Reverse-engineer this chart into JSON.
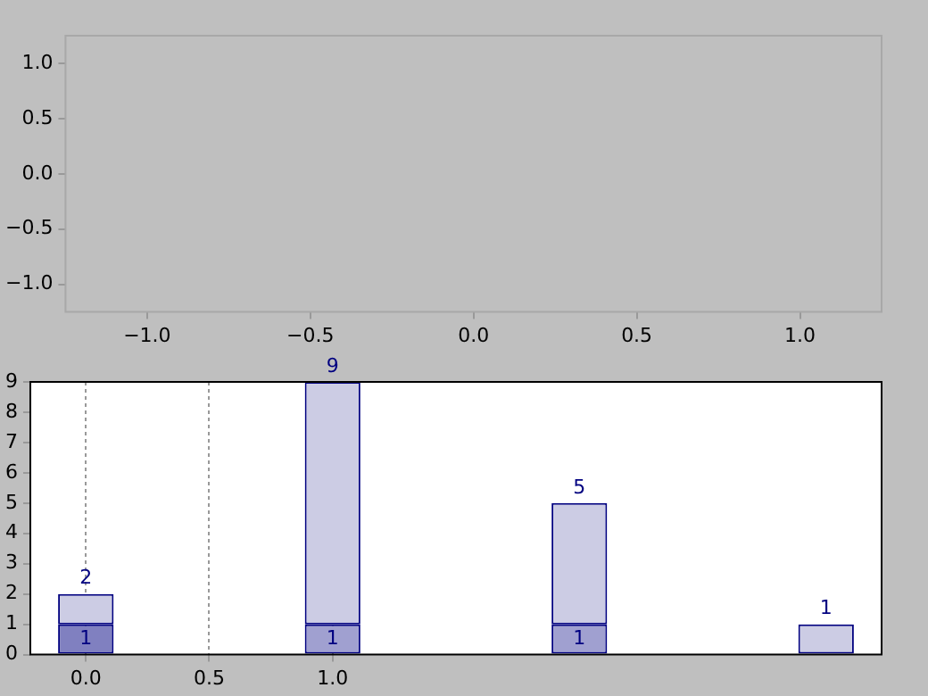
{
  "chart_data": [
    {
      "type": "scatter",
      "xlim": [
        -1.25,
        1.25
      ],
      "ylim": [
        -1.25,
        1.25
      ],
      "xticks": [
        {
          "value": -1,
          "label": "−1.0"
        },
        {
          "value": -0.5,
          "label": "−0.5"
        },
        {
          "value": 0,
          "label": "0.0"
        },
        {
          "value": 0.5,
          "label": "0.5"
        },
        {
          "value": 1,
          "label": "1.0"
        }
      ],
      "yticks": [
        {
          "value": -1,
          "label": "−1.0"
        },
        {
          "value": -0.5,
          "label": "−0.5"
        },
        {
          "value": 0,
          "label": "0.0"
        },
        {
          "value": 0.5,
          "label": "0.5"
        },
        {
          "value": 1,
          "label": "1.0"
        }
      ],
      "grid": false
    },
    {
      "type": "bar",
      "x": [
        0,
        1,
        2,
        3
      ],
      "series": [
        {
          "colors": [
            "#8080c0",
            "#a0a0d0",
            "#a0a0d0",
            null
          ],
          "values": [
            1,
            1,
            1,
            null
          ],
          "value_labels": [
            "1",
            "1",
            "1",
            null
          ]
        },
        {
          "colors": [
            "#cccce4",
            "#cccce4",
            "#cccce4",
            "#cccce4"
          ],
          "values": [
            1,
            8,
            4,
            1
          ]
        }
      ],
      "stacked": true,
      "totals": [
        "2",
        "9",
        "5",
        "1"
      ],
      "xlim": [
        -0.225,
        3.225
      ],
      "ylim": [
        0,
        9
      ],
      "xticks": [
        {
          "value": 0,
          "label": "0.0"
        },
        {
          "value": 0.5,
          "label": "0.5"
        },
        {
          "value": 1,
          "label": "1.0"
        }
      ],
      "yticks": [
        0,
        1,
        2,
        3,
        4,
        5,
        6,
        7,
        8,
        9
      ],
      "grid": "x"
    }
  ]
}
